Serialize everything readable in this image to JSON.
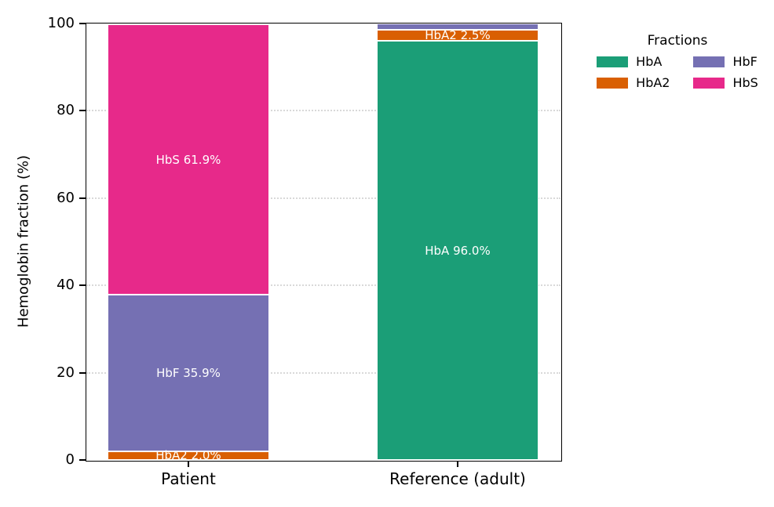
{
  "figure": {
    "background": "#ffffff"
  },
  "legend": {
    "title": "Fractions",
    "columns": 2,
    "position": "outside-upper-right",
    "items": [
      {
        "label": "HbA",
        "color": "#1b9e77"
      },
      {
        "label": "HbA2",
        "color": "#d95f02"
      },
      {
        "label": "HbF",
        "color": "#7570b3"
      },
      {
        "label": "HbS",
        "color": "#e7298a"
      }
    ]
  },
  "chart_data": {
    "type": "bar",
    "stacked": true,
    "title": "",
    "xlabel": "",
    "ylabel": "Hemoglobin fraction (%)",
    "ylim": [
      0,
      100
    ],
    "yticks": [
      0,
      20,
      40,
      60,
      80,
      100
    ],
    "grid": {
      "axis": "y",
      "style": "dotted",
      "color": "#d9d9d9"
    },
    "categories": [
      "Patient",
      "Reference (adult)"
    ],
    "series": [
      {
        "name": "HbA",
        "color": "#1b9e77",
        "values": [
          0.0,
          96.0
        ]
      },
      {
        "name": "HbA2",
        "color": "#d95f02",
        "values": [
          2.0,
          2.5
        ]
      },
      {
        "name": "HbF",
        "color": "#7570b3",
        "values": [
          35.9,
          1.5
        ]
      },
      {
        "name": "HbS",
        "color": "#e7298a",
        "values": [
          61.9,
          0.0
        ]
      }
    ],
    "segment_labels_visible": [
      "HbA2 2.0%",
      "HbF 35.9%",
      "HbS 61.9%",
      "HbA 96.0%",
      "HbA2 2.5%"
    ],
    "segment_label_min_value": 2.0,
    "segment_label_color": "#ffffff",
    "legend_title": "Fractions",
    "axis_text_color": "#000000"
  }
}
